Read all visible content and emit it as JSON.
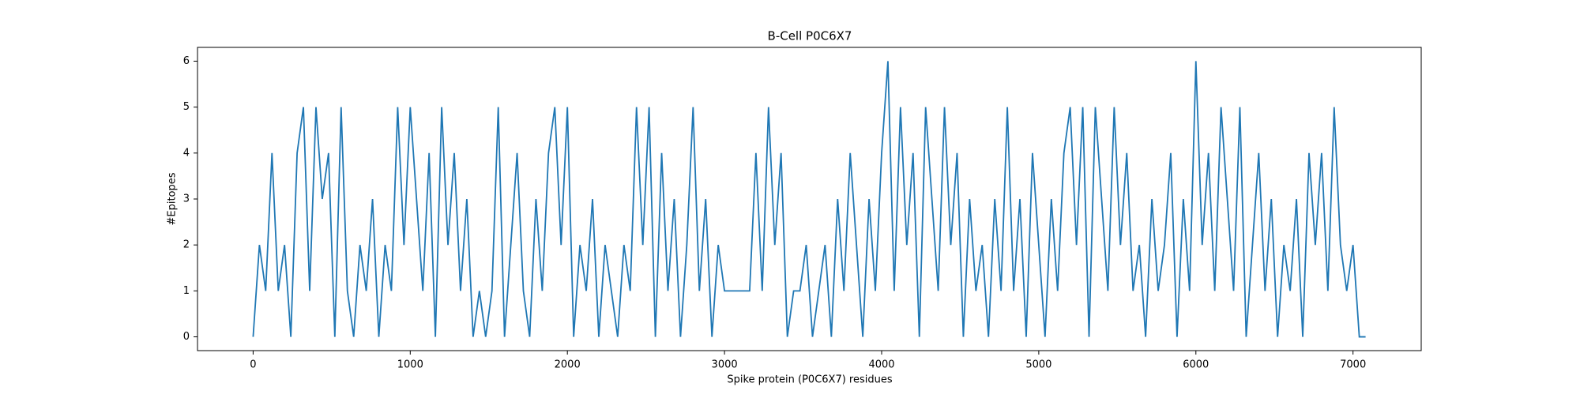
{
  "chart_data": {
    "type": "line",
    "title": "B-Cell P0C6X7",
    "xlabel": "Spike protein (P0C6X7) residues",
    "ylabel": "#Epitopes",
    "x": [
      0,
      40,
      80,
      120,
      160,
      200,
      240,
      280,
      320,
      360,
      400,
      440,
      480,
      520,
      560,
      600,
      640,
      680,
      720,
      760,
      800,
      840,
      880,
      920,
      960,
      1000,
      1040,
      1080,
      1120,
      1160,
      1200,
      1240,
      1280,
      1320,
      1360,
      1400,
      1440,
      1480,
      1520,
      1560,
      1600,
      1640,
      1680,
      1720,
      1760,
      1800,
      1840,
      1880,
      1920,
      1960,
      2000,
      2040,
      2080,
      2120,
      2160,
      2200,
      2240,
      2280,
      2320,
      2360,
      2400,
      2440,
      2480,
      2520,
      2560,
      2600,
      2640,
      2680,
      2720,
      2760,
      2800,
      2840,
      2880,
      2920,
      2960,
      3000,
      3040,
      3080,
      3120,
      3160,
      3200,
      3240,
      3280,
      3320,
      3360,
      3400,
      3440,
      3480,
      3520,
      3560,
      3600,
      3640,
      3680,
      3720,
      3760,
      3800,
      3840,
      3880,
      3920,
      3960,
      4000,
      4040,
      4080,
      4120,
      4160,
      4200,
      4240,
      4280,
      4320,
      4360,
      4400,
      4440,
      4480,
      4520,
      4560,
      4600,
      4640,
      4680,
      4720,
      4760,
      4800,
      4840,
      4880,
      4920,
      4960,
      5000,
      5040,
      5080,
      5120,
      5160,
      5200,
      5240,
      5280,
      5320,
      5360,
      5400,
      5440,
      5480,
      5520,
      5560,
      5600,
      5640,
      5680,
      5720,
      5760,
      5800,
      5840,
      5880,
      5920,
      5960,
      6000,
      6040,
      6080,
      6120,
      6160,
      6200,
      6240,
      6280,
      6320,
      6360,
      6400,
      6440,
      6480,
      6520,
      6560,
      6600,
      6640,
      6680,
      6720,
      6760,
      6800,
      6840,
      6880,
      6920,
      6960,
      7000,
      7040,
      7080
    ],
    "series": [
      {
        "name": "#Epitopes",
        "color": "#1f77b4",
        "values": [
          0,
          2,
          1,
          4,
          1,
          2,
          0,
          4,
          5,
          1,
          5,
          3,
          4,
          0,
          5,
          1,
          0,
          2,
          1,
          3,
          0,
          2,
          1,
          5,
          2,
          5,
          3,
          1,
          4,
          0,
          5,
          2,
          4,
          1,
          3,
          0,
          1,
          0,
          1,
          5,
          0,
          2,
          4,
          1,
          0,
          3,
          1,
          4,
          5,
          2,
          5,
          0,
          2,
          1,
          3,
          0,
          2,
          1,
          0,
          2,
          1,
          5,
          2,
          5,
          0,
          4,
          1,
          3,
          0,
          2,
          5,
          1,
          3,
          0,
          2,
          1,
          1,
          1,
          1,
          1,
          4,
          1,
          5,
          2,
          4,
          0,
          1,
          1,
          2,
          0,
          1,
          2,
          0,
          3,
          1,
          4,
          2,
          0,
          3,
          1,
          4,
          6,
          1,
          5,
          2,
          4,
          0,
          5,
          3,
          1,
          5,
          2,
          4,
          0,
          3,
          1,
          2,
          0,
          3,
          1,
          5,
          1,
          3,
          0,
          4,
          2,
          0,
          3,
          1,
          4,
          5,
          2,
          5,
          0,
          5,
          3,
          1,
          5,
          2,
          4,
          1,
          2,
          0,
          3,
          1,
          2,
          4,
          0,
          3,
          1,
          6,
          2,
          4,
          1,
          5,
          3,
          1,
          5,
          0,
          2,
          4,
          1,
          3,
          0,
          2,
          1,
          3,
          0,
          4,
          2,
          4,
          1,
          5,
          2,
          1,
          2,
          0,
          0
        ]
      }
    ],
    "xlim": [
      -354,
      7434
    ],
    "ylim": [
      -0.3,
      6.3
    ],
    "xticks": [
      0,
      1000,
      2000,
      3000,
      4000,
      5000,
      6000,
      7000
    ],
    "yticks": [
      0,
      1,
      2,
      3,
      4,
      5,
      6
    ]
  }
}
